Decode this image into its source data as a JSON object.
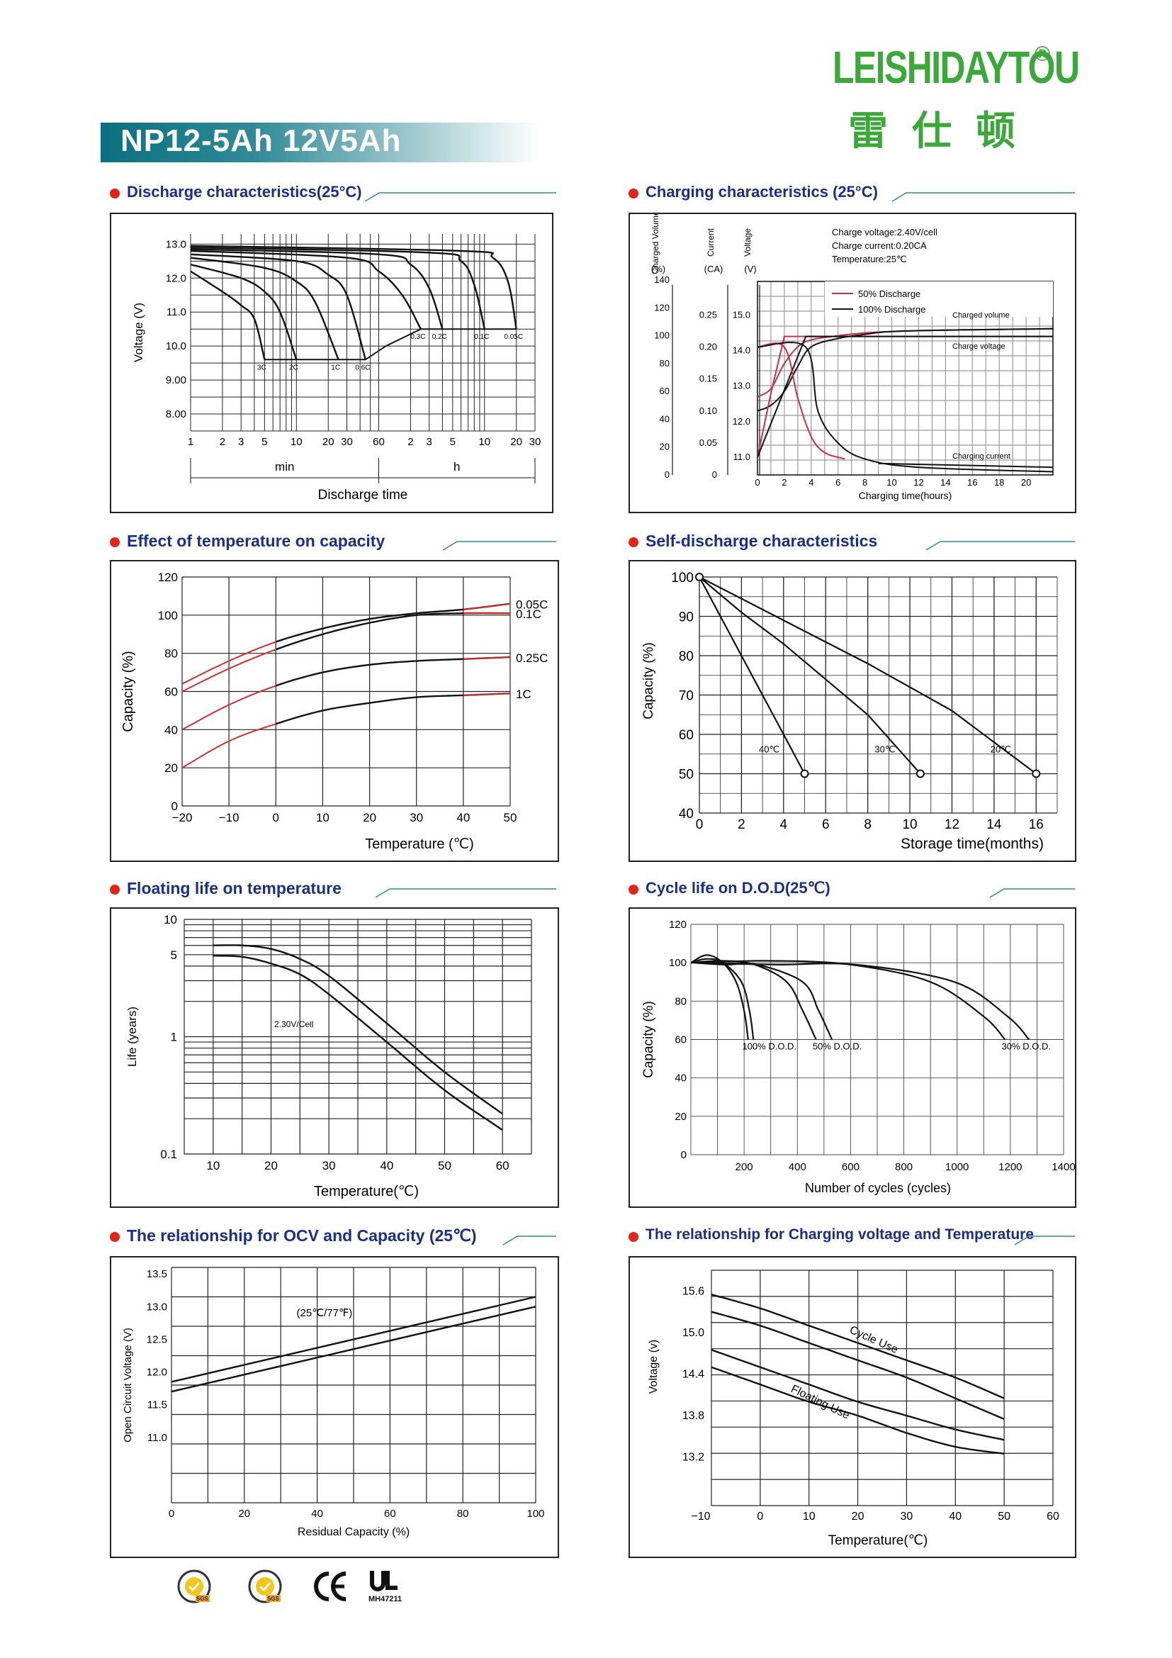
{
  "brand": {
    "name_en": "LEISHIDAYTOU",
    "name_cn": "雷仕顿",
    "reg": "®"
  },
  "title": "NP12-5Ah 12V5Ah",
  "footer": {
    "ul_code": "MH47211"
  },
  "sections": {
    "discharge": "Discharge characteristics(25°C)",
    "charging": "Charging characteristics (25°C)",
    "temp_capacity": "Effect of temperature on capacity",
    "self_discharge": "Self-discharge characteristics",
    "floating": "Floating life on temperature",
    "cycle": "Cycle life on D.O.D(25℃)",
    "ocv": "The relationship  for OCV and Capacity (25℃)",
    "chg_volt_temp": "The relationship for Charging voltage and Temperature"
  },
  "chart_data": [
    {
      "id": "discharge",
      "type": "line",
      "ylabel": "Voltage (V)",
      "xlabel": "Discharge time",
      "x_unit_labels": [
        "min",
        "h"
      ],
      "x_ticks": [
        "1",
        "2",
        "3",
        "5",
        "10",
        "20",
        "30",
        "60",
        "2",
        "3",
        "5",
        "10",
        "20",
        "30"
      ],
      "y_ticks": [
        "13.0",
        "12.0",
        "11.0",
        "10.0",
        "9.00",
        "8.00"
      ],
      "ylim": [
        7.5,
        13.3
      ],
      "x_scale": "log, minutes 1–1800",
      "series": [
        {
          "name": "3C",
          "x": [
            1,
            2,
            3,
            4,
            5
          ],
          "y": [
            12.2,
            11.6,
            11.2,
            10.8,
            9.6
          ]
        },
        {
          "name": "2C",
          "x": [
            1,
            3,
            5,
            7,
            10
          ],
          "y": [
            12.4,
            12.0,
            11.6,
            11.0,
            9.6
          ]
        },
        {
          "name": "1C",
          "x": [
            1,
            5,
            10,
            15,
            25
          ],
          "y": [
            12.6,
            12.3,
            11.9,
            11.3,
            9.6
          ]
        },
        {
          "name": "0.6C",
          "x": [
            1,
            10,
            20,
            30,
            45
          ],
          "y": [
            12.7,
            12.5,
            12.1,
            11.5,
            9.6
          ]
        },
        {
          "name": "0.3C",
          "x": [
            1,
            30,
            60,
            100,
            150
          ],
          "y": [
            12.8,
            12.6,
            12.2,
            11.5,
            10.5
          ]
        },
        {
          "name": "0.2C",
          "x": [
            1,
            60,
            120,
            180,
            240
          ],
          "y": [
            12.85,
            12.7,
            12.4,
            11.7,
            10.5
          ]
        },
        {
          "name": "0.1C",
          "x": [
            1,
            180,
            360,
            480,
            600
          ],
          "y": [
            12.9,
            12.75,
            12.5,
            11.8,
            10.5
          ]
        },
        {
          "name": "0.05C",
          "x": [
            1,
            360,
            720,
            1000,
            1200
          ],
          "y": [
            12.95,
            12.8,
            12.6,
            11.9,
            10.5
          ]
        }
      ],
      "grid": true
    },
    {
      "id": "charging",
      "type": "line",
      "xlabel": "Charging time(hours)",
      "x_ticks": [
        "0",
        "2",
        "4",
        "6",
        "8",
        "10",
        "12",
        "14",
        "16",
        "18",
        "20"
      ],
      "xlim": [
        0,
        22
      ],
      "axes": [
        {
          "label": "Charged Volume",
          "unit": "(%)",
          "ticks": [
            "140",
            "120",
            "100",
            "80",
            "60",
            "40",
            "20",
            "0"
          ],
          "range": [
            0,
            140
          ]
        },
        {
          "label": "Current",
          "unit": "(CA)",
          "ticks": [
            "0.25",
            "0.20",
            "0.15",
            "0.10",
            "0.05",
            "0"
          ],
          "range": [
            0,
            0.25
          ]
        },
        {
          "label": "Voltage",
          "unit": "(V)",
          "ticks": [
            "15.0",
            "14.0",
            "13.0",
            "12.0",
            "11.0"
          ],
          "range": [
            10.5,
            15.0
          ]
        }
      ],
      "notes": [
        "Charge voltage:2.40V/cell",
        "Charge current:0.20CA",
        "Temperature:25℃"
      ],
      "legend": [
        {
          "name": "50% Discharge",
          "color": "#c8304a"
        },
        {
          "name": "100% Discharge",
          "color": "#111111"
        }
      ],
      "curve_labels": [
        "Charged volume",
        "Charge voltage",
        "Charging current"
      ],
      "series": [
        {
          "name": "Charged volume 50%",
          "color": "#c8304a",
          "x": [
            0,
            1,
            2,
            3,
            4,
            6,
            8,
            10,
            14,
            18,
            22
          ],
          "y": [
            56,
            62,
            80,
            92,
            97,
            100,
            102,
            103,
            104,
            104.5,
            105
          ]
        },
        {
          "name": "Charged volume 100%",
          "color": "#111111",
          "x": [
            0,
            1,
            2,
            3,
            4,
            6,
            8,
            10,
            14,
            18,
            22
          ],
          "y": [
            46,
            50,
            60,
            78,
            92,
            98,
            101,
            103,
            104,
            104.5,
            105
          ]
        },
        {
          "name": "Charge voltage 50%",
          "color": "#c8304a",
          "x": [
            0,
            1,
            2,
            22
          ],
          "y": [
            11.0,
            12.8,
            14.4,
            14.4
          ]
        },
        {
          "name": "Charge voltage 100%",
          "color": "#111111",
          "x": [
            0,
            3.6,
            22
          ],
          "y": [
            11.0,
            14.4,
            14.4
          ]
        },
        {
          "name": "Charging current 50%",
          "color": "#c8304a",
          "x": [
            0,
            2,
            3,
            4,
            5,
            6.5
          ],
          "y": [
            0.2,
            0.2,
            0.12,
            0.06,
            0.035,
            0.025
          ]
        },
        {
          "name": "Charging current 100%",
          "color": "#111111",
          "x": [
            0,
            3.6,
            4.5,
            6,
            8,
            12,
            22
          ],
          "y": [
            0.2,
            0.2,
            0.1,
            0.05,
            0.025,
            0.012,
            0.005
          ]
        }
      ]
    },
    {
      "id": "temp_capacity",
      "type": "line",
      "ylabel": "Capacity (%)",
      "xlabel": "Temperature (℃)",
      "x_ticks": [
        "−20",
        "−10",
        "0",
        "10",
        "20",
        "30",
        "40",
        "50"
      ],
      "y_ticks": [
        "120",
        "100",
        "80",
        "60",
        "40",
        "20",
        "0"
      ],
      "xlim": [
        -20,
        50
      ],
      "ylim": [
        0,
        120
      ],
      "series": [
        {
          "name": "0.05C",
          "x": [
            -20,
            -10,
            0,
            10,
            20,
            30,
            40,
            50
          ],
          "y": [
            64,
            76,
            86,
            93,
            98,
            101,
            103,
            106
          ]
        },
        {
          "name": "0.1C",
          "x": [
            -20,
            -10,
            0,
            10,
            20,
            30,
            40,
            50
          ],
          "y": [
            60,
            72,
            82,
            90,
            96,
            100,
            101,
            101
          ]
        },
        {
          "name": "0.25C",
          "x": [
            -20,
            -10,
            0,
            10,
            20,
            30,
            40,
            50
          ],
          "y": [
            40,
            53,
            63,
            70,
            74,
            76,
            77,
            78
          ]
        },
        {
          "name": "1C",
          "x": [
            -20,
            -10,
            0,
            10,
            20,
            30,
            40,
            50
          ],
          "y": [
            20,
            34,
            43,
            50,
            54,
            57,
            58,
            59
          ]
        }
      ]
    },
    {
      "id": "self_discharge",
      "type": "line",
      "ylabel": "Capacity (%)",
      "xlabel": "Storage time(months)",
      "x_ticks": [
        "0",
        "2",
        "4",
        "6",
        "8",
        "10",
        "12",
        "14",
        "16"
      ],
      "y_ticks": [
        "100",
        "90",
        "80",
        "70",
        "60",
        "50",
        "40"
      ],
      "xlim": [
        0,
        17
      ],
      "ylim": [
        40,
        100
      ],
      "series": [
        {
          "name": "40℃",
          "x": [
            0,
            1,
            2,
            3,
            4,
            5
          ],
          "y": [
            100,
            90,
            80,
            70,
            60,
            50
          ]
        },
        {
          "name": "30℃",
          "x": [
            0,
            2,
            4,
            6,
            8,
            10.5
          ],
          "y": [
            100,
            91,
            83,
            74,
            65,
            50
          ]
        },
        {
          "name": "20℃",
          "x": [
            0,
            4,
            8,
            12,
            16
          ],
          "y": [
            100,
            89,
            78,
            66,
            50
          ]
        }
      ]
    },
    {
      "id": "floating",
      "type": "line",
      "ylabel": "Life (years)",
      "xlabel": "Temperature(℃)",
      "x_ticks": [
        "10",
        "20",
        "30",
        "40",
        "50",
        "60"
      ],
      "y_ticks": [
        "10",
        "5",
        "1",
        "0.1"
      ],
      "xlim": [
        5,
        65
      ],
      "ylim": [
        0.1,
        10
      ],
      "y_scale": "log",
      "annotation": "2.30V/Cell",
      "series": [
        {
          "name": "upper",
          "x": [
            10,
            15,
            20,
            25,
            30,
            40,
            50,
            60
          ],
          "y": [
            6,
            6,
            5.6,
            4.6,
            3.3,
            1.3,
            0.5,
            0.22
          ]
        },
        {
          "name": "lower",
          "x": [
            10,
            15,
            20,
            25,
            30,
            40,
            50,
            60
          ],
          "y": [
            4.9,
            4.8,
            4.2,
            3.4,
            2.3,
            0.9,
            0.35,
            0.16
          ]
        }
      ]
    },
    {
      "id": "cycle",
      "type": "line",
      "ylabel": "Capacity (%)",
      "xlabel": "Number of cycles (cycles)",
      "x_ticks": [
        "200",
        "400",
        "600",
        "800",
        "1000",
        "1200",
        "1400"
      ],
      "y_ticks": [
        "120",
        "100",
        "80",
        "60",
        "40",
        "20",
        "0"
      ],
      "xlim": [
        0,
        1400
      ],
      "ylim": [
        0,
        120
      ],
      "series": [
        {
          "name": "100% D.O.D.",
          "x": [
            0,
            60,
            120,
            170,
            200,
            215
          ],
          "y": [
            100,
            104,
            100,
            90,
            75,
            60
          ]
        },
        {
          "name": "50% D.O.D.",
          "x": [
            0,
            120,
            240,
            360,
            420,
            470
          ],
          "y": [
            100,
            101,
            99,
            90,
            75,
            60
          ]
        },
        {
          "name": "30% D.O.D.",
          "x": [
            0,
            300,
            600,
            900,
            1100,
            1180
          ],
          "y": [
            100,
            101,
            99,
            90,
            72,
            60
          ]
        }
      ]
    },
    {
      "id": "ocv",
      "type": "line",
      "ylabel": "Open Circuit Voltage (V)",
      "xlabel": "Residual Capacity (%)",
      "x_ticks": [
        "0",
        "20",
        "40",
        "60",
        "80",
        "100"
      ],
      "y_ticks": [
        "13.5",
        "13.0",
        "12.5",
        "12.0",
        "11.5",
        "11.0"
      ],
      "xlim": [
        0,
        100
      ],
      "ylim": [
        10.0,
        13.5
      ],
      "annotation": "(25℃/77℉)",
      "series": [
        {
          "name": "upper",
          "x": [
            0,
            100
          ],
          "y": [
            11.85,
            13.15
          ]
        },
        {
          "name": "lower",
          "x": [
            0,
            100
          ],
          "y": [
            11.7,
            13.0
          ]
        }
      ]
    },
    {
      "id": "chg_volt_temp",
      "type": "line",
      "ylabel": "Voltage (v)",
      "xlabel": "Temperature(℃)",
      "x_ticks": [
        "−10",
        "0",
        "10",
        "20",
        "30",
        "40",
        "50",
        "60"
      ],
      "y_ticks": [
        "15.6",
        "15.0",
        "14.4",
        "13.8",
        "13.2"
      ],
      "xlim": [
        -10,
        60
      ],
      "ylim": [
        12.5,
        15.9
      ],
      "series": [
        {
          "name": "Cycle Use",
          "x": [
            -10,
            0,
            10,
            20,
            30,
            40,
            50
          ],
          "y": [
            15.55,
            15.35,
            15.1,
            14.85,
            14.6,
            14.35,
            14.05
          ]
        },
        {
          "name": "Cycle Use lower",
          "x": [
            -10,
            0,
            10,
            20,
            30,
            40,
            50
          ],
          "y": [
            15.3,
            15.1,
            14.85,
            14.6,
            14.35,
            14.05,
            13.75
          ]
        },
        {
          "name": "Floating Use",
          "x": [
            -10,
            0,
            10,
            20,
            30,
            40,
            50
          ],
          "y": [
            14.75,
            14.5,
            14.25,
            14.0,
            13.8,
            13.6,
            13.45
          ]
        },
        {
          "name": "Floating Use lower",
          "x": [
            -10,
            0,
            10,
            20,
            30,
            40,
            50
          ],
          "y": [
            14.5,
            14.25,
            14.0,
            13.8,
            13.55,
            13.35,
            13.25
          ]
        }
      ]
    }
  ]
}
